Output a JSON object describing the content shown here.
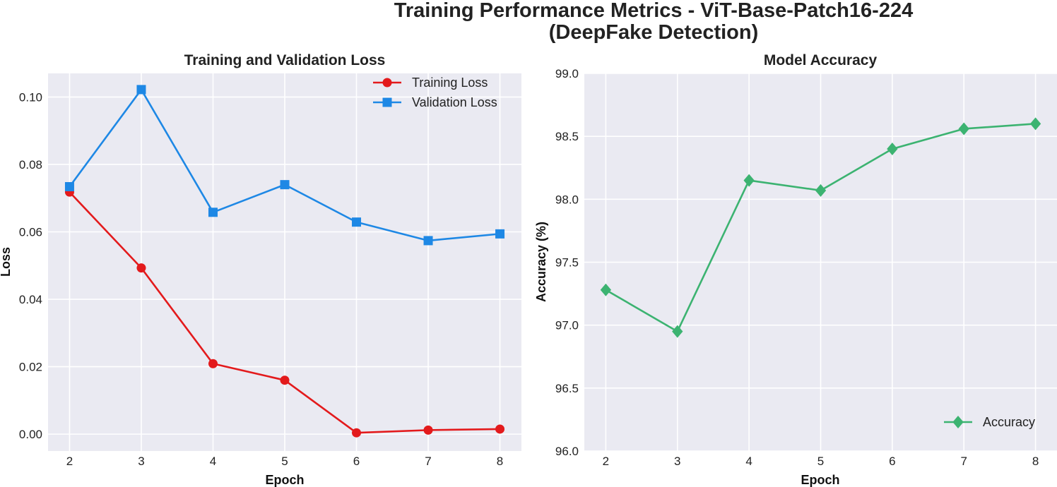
{
  "figure": {
    "title_line1": "Training Performance Metrics - ViT-Base-Patch16-224",
    "title_line2": "(DeepFake Detection)"
  },
  "chart_data": [
    {
      "type": "line",
      "title": "Training and Validation Loss",
      "xlabel": "Epoch",
      "ylabel": "Loss",
      "x": [
        2,
        3,
        4,
        5,
        6,
        7,
        8
      ],
      "xticks": [
        "2",
        "3",
        "4",
        "5",
        "6",
        "7",
        "8"
      ],
      "yticks": [
        "0.00",
        "0.02",
        "0.04",
        "0.06",
        "0.08",
        "0.10"
      ],
      "xlim": [
        1.7,
        8.3
      ],
      "ylim": [
        -0.005,
        0.107
      ],
      "grid": true,
      "legend_position": "top-right",
      "series": [
        {
          "name": "Training Loss",
          "color": "#e31a1c",
          "marker": "circle",
          "values": [
            0.0718,
            0.0493,
            0.0209,
            0.016,
            0.0004,
            0.0012,
            0.0015
          ]
        },
        {
          "name": "Validation Loss",
          "color": "#1e88e5",
          "marker": "square",
          "values": [
            0.0734,
            0.1022,
            0.0658,
            0.074,
            0.0629,
            0.0574,
            0.0594
          ]
        }
      ]
    },
    {
      "type": "line",
      "title": "Model Accuracy",
      "xlabel": "Epoch",
      "ylabel": "Accuracy (%)",
      "x": [
        2,
        3,
        4,
        5,
        6,
        7,
        8
      ],
      "xticks": [
        "2",
        "3",
        "4",
        "5",
        "6",
        "7",
        "8"
      ],
      "yticks": [
        "96.0",
        "96.5",
        "97.0",
        "97.5",
        "98.0",
        "98.5",
        "99.0"
      ],
      "xlim": [
        1.7,
        8.3
      ],
      "ylim": [
        96.0,
        99.0
      ],
      "grid": true,
      "legend_position": "bottom-right",
      "series": [
        {
          "name": "Accuracy",
          "color": "#3cb371",
          "marker": "diamond",
          "values": [
            97.28,
            96.95,
            98.15,
            98.07,
            98.4,
            98.56,
            98.6
          ]
        }
      ]
    }
  ]
}
